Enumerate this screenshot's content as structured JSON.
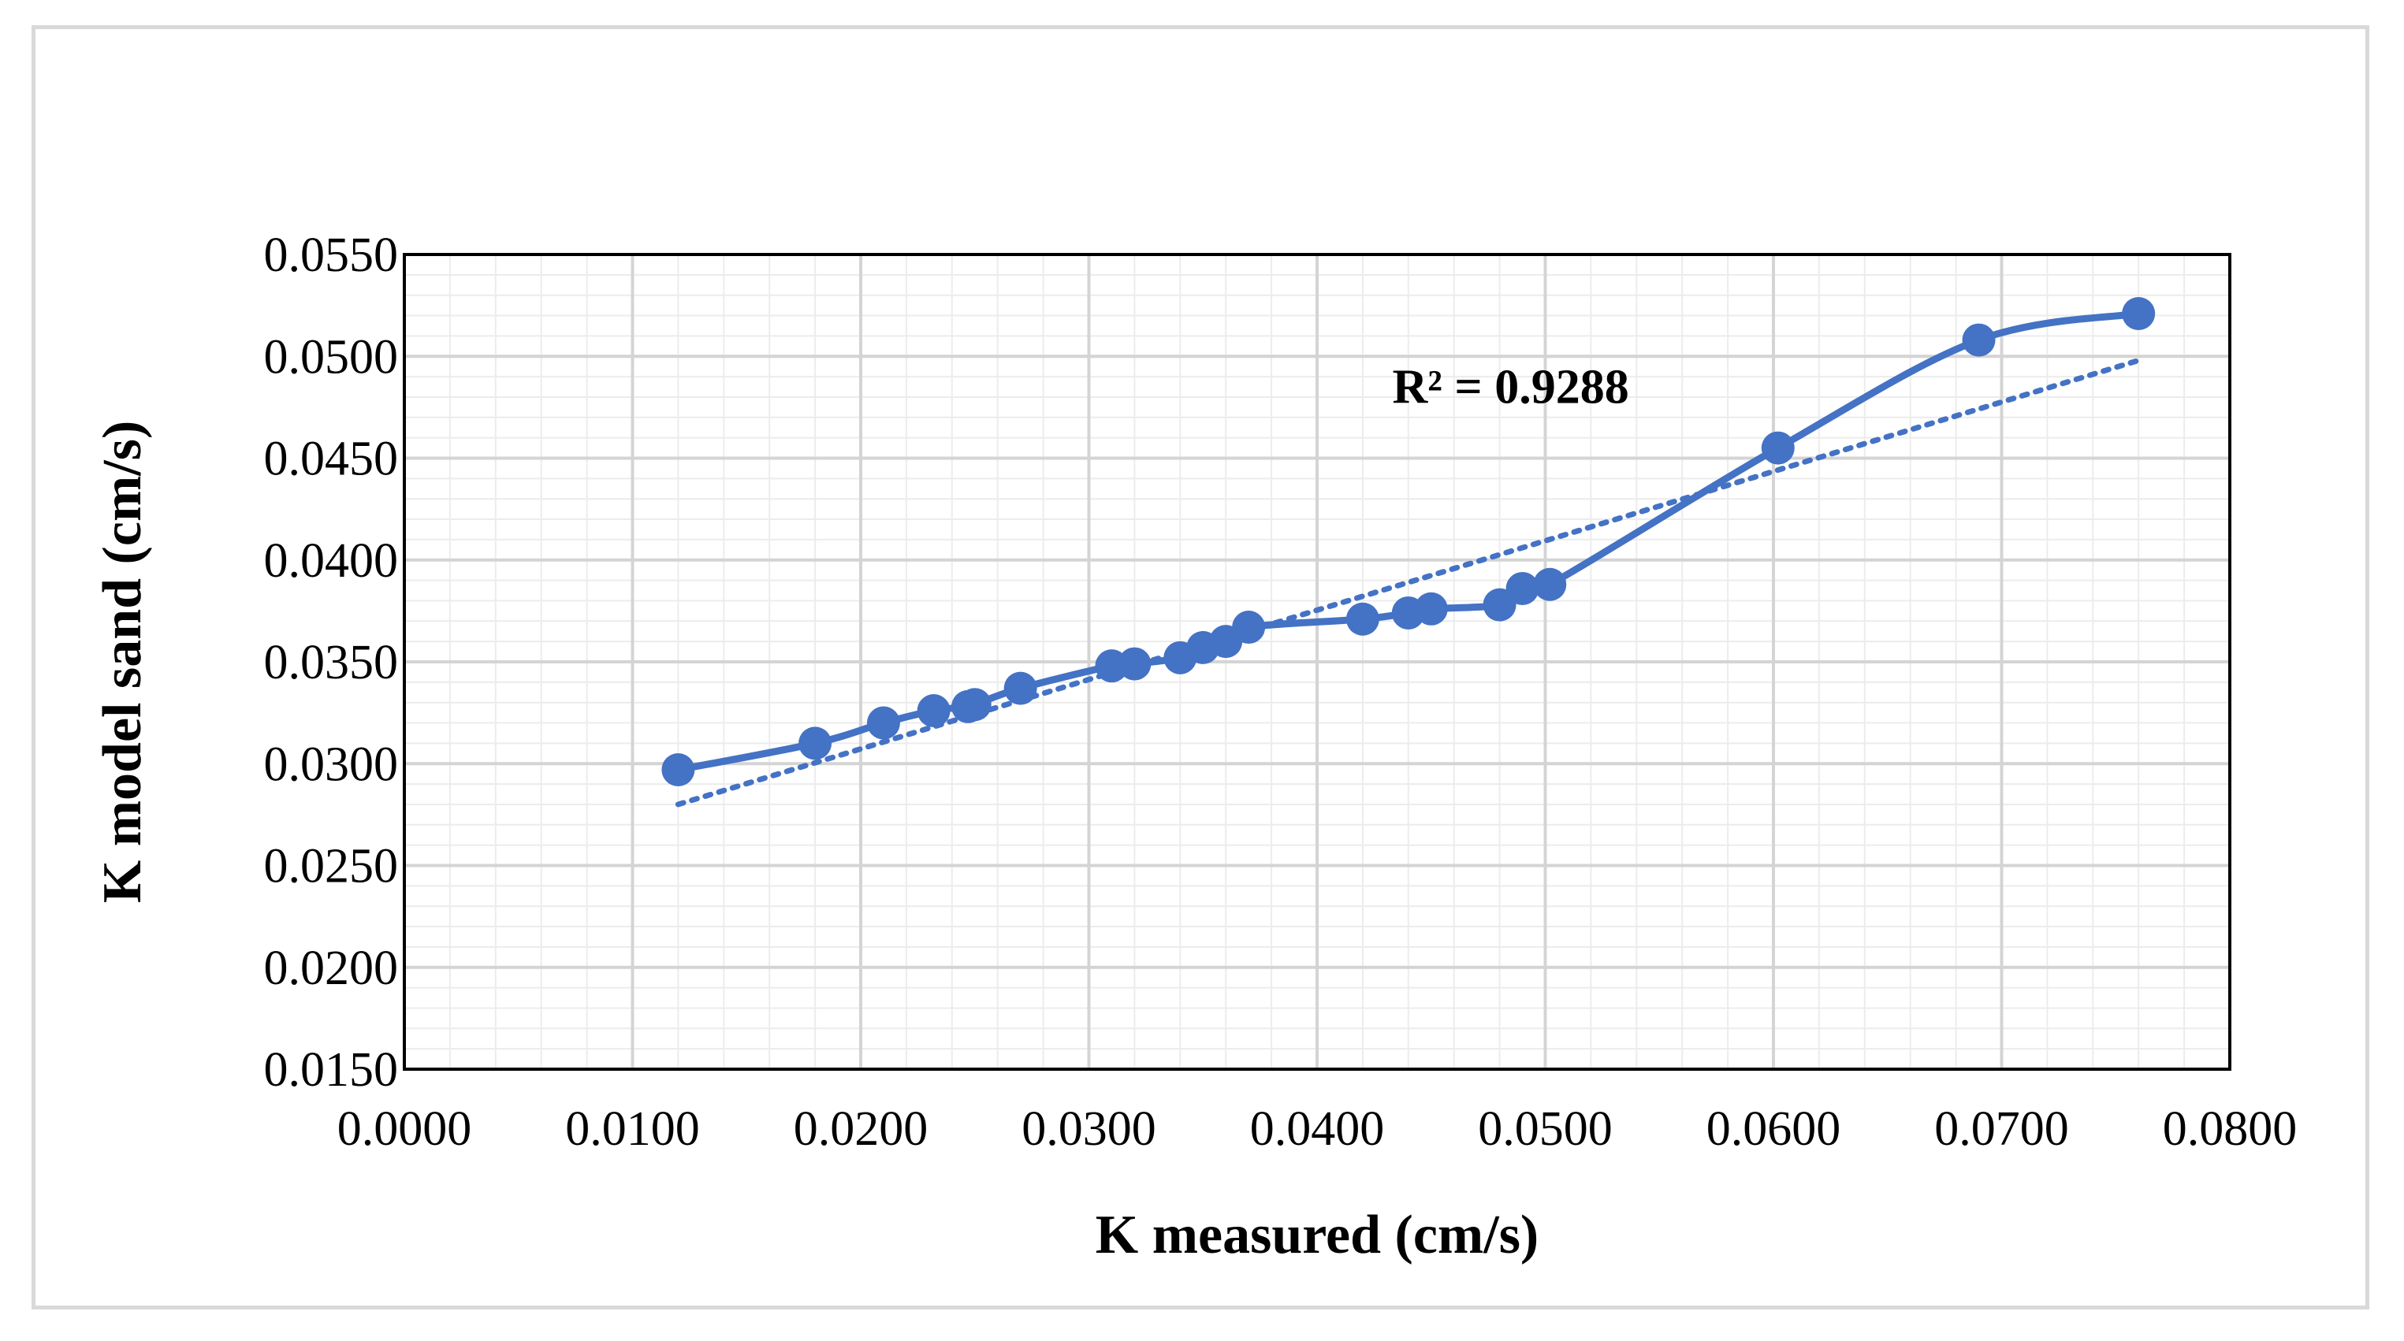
{
  "chart_data": {
    "type": "scatter",
    "title": "",
    "xlabel": "K measured (cm/s)",
    "ylabel": "K model sand (cm/s)",
    "xlim": [
      0.0,
      0.08
    ],
    "ylim": [
      0.015,
      0.055
    ],
    "x_major_step": 0.01,
    "y_major_step": 0.005,
    "x_ticks": [
      "0.0000",
      "0.0100",
      "0.0200",
      "0.0300",
      "0.0400",
      "0.0500",
      "0.0600",
      "0.0700",
      "0.0800"
    ],
    "y_ticks": [
      "0.0150",
      "0.0200",
      "0.0250",
      "0.0300",
      "0.0350",
      "0.0400",
      "0.0450",
      "0.0500",
      "0.0550"
    ],
    "grid": true,
    "legend": "none",
    "series": [
      {
        "name": "K model sand",
        "style": "smoothed line with markers",
        "color": "#4472C4",
        "x": [
          0.012,
          0.018,
          0.021,
          0.0232,
          0.0247,
          0.025,
          0.027,
          0.031,
          0.032,
          0.034,
          0.035,
          0.036,
          0.037,
          0.042,
          0.044,
          0.045,
          0.048,
          0.049,
          0.0502,
          0.0602,
          0.069,
          0.076
        ],
        "y": [
          0.0297,
          0.031,
          0.032,
          0.0326,
          0.0328,
          0.0329,
          0.0337,
          0.0348,
          0.0349,
          0.0352,
          0.0357,
          0.036,
          0.0367,
          0.0371,
          0.0374,
          0.0376,
          0.0378,
          0.0386,
          0.0388,
          0.0455,
          0.0508,
          0.0521
        ]
      }
    ],
    "trendline": {
      "type": "linear",
      "style": "dotted",
      "color": "#4472C4",
      "x": [
        0.012,
        0.076
      ],
      "y": [
        0.028,
        0.0498
      ],
      "r2_label": "R² = 0.9288",
      "r2_anchor": {
        "x": 0.0433,
        "y": 0.0477
      }
    }
  }
}
